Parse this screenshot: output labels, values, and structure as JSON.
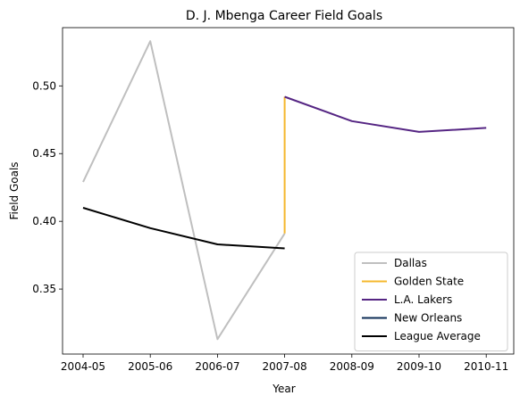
{
  "chart_data": {
    "type": "line",
    "title": "D. J. Mbenga Career Field Goals",
    "xlabel": "Year",
    "ylabel": "Field Goals",
    "categories": [
      "2004-05",
      "2005-06",
      "2006-07",
      "2007-08",
      "2008-09",
      "2009-10",
      "2010-11"
    ],
    "ylim": [
      0.302,
      0.543
    ],
    "yticks": [
      0.35,
      0.4,
      0.45,
      0.5
    ],
    "ytick_labels": [
      "0.35",
      "0.40",
      "0.45",
      "0.50"
    ],
    "grid": false,
    "legend_position": "lower-right",
    "series": [
      {
        "name": "Dallas",
        "color": "#bfbfbf",
        "points": [
          [
            "2004-05",
            0.429
          ],
          [
            "2005-06",
            0.533
          ],
          [
            "2006-07",
            0.313
          ],
          [
            "2007-08",
            0.391
          ]
        ]
      },
      {
        "name": "Golden State",
        "color": "#f5b82e",
        "points": [
          [
            "2007-08",
            0.391
          ],
          [
            "2007-08",
            0.492
          ]
        ]
      },
      {
        "name": "L.A. Lakers",
        "color": "#552583",
        "points": [
          [
            "2007-08",
            0.492
          ],
          [
            "2008-09",
            0.474
          ],
          [
            "2009-10",
            0.466
          ],
          [
            "2010-11",
            0.469
          ]
        ]
      },
      {
        "name": "New Orleans",
        "color": "#0c2c56",
        "points": []
      },
      {
        "name": "League Average",
        "color": "#000000",
        "points": [
          [
            "2004-05",
            0.41
          ],
          [
            "2005-06",
            0.395
          ],
          [
            "2006-07",
            0.383
          ],
          [
            "2007-08",
            0.38
          ]
        ]
      }
    ]
  }
}
